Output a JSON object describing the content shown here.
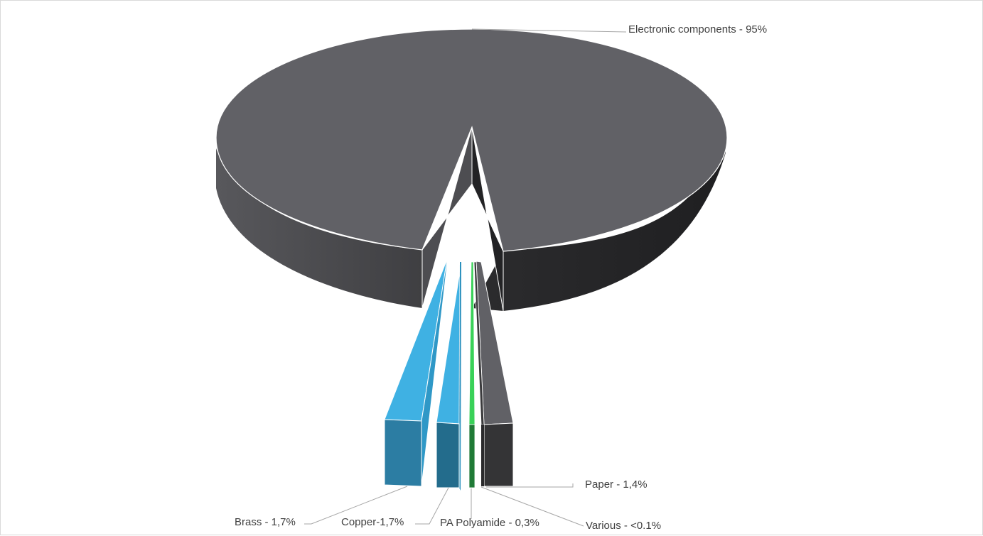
{
  "chart_data": {
    "type": "pie",
    "style": "3d exploded",
    "slices": [
      {
        "label": "Electronic components - 95%",
        "category": "Electronic components",
        "value": 95,
        "color": "#616166"
      },
      {
        "label": "Paper - 1,4%",
        "category": "Paper",
        "value": 1.4,
        "color": "#606063"
      },
      {
        "label": "Various - <0.1%",
        "category": "Various",
        "value": 0.1,
        "color": "#3a3a3c"
      },
      {
        "label": "PA Polyamide - 0,3%",
        "category": "PA Polyamide",
        "value": 0.3,
        "color": "#39d158"
      },
      {
        "label": "Copper-1,7%",
        "category": "Copper",
        "value": 1.7,
        "color": "#3fb1e3"
      },
      {
        "label": "Brass - 1,7%",
        "category": "Brass",
        "value": 1.7,
        "color": "#3fb1e3"
      }
    ]
  }
}
